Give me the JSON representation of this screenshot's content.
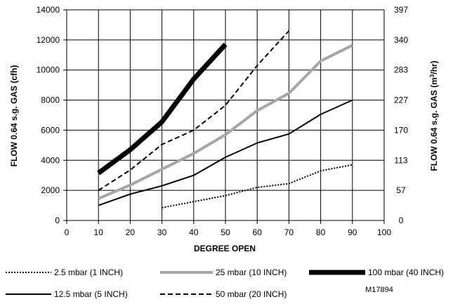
{
  "chart_data": {
    "type": "line",
    "xlabel": "DEGREE OPEN",
    "ylabel": "FLOW 0.64 s.g. GAS (cfh)",
    "y2label_prefix": "FLOW 0.64 s.g. GAS (m",
    "y2label_sup": "3",
    "y2label_suffix": "/hr)",
    "xlim": [
      0,
      100
    ],
    "ylim": [
      0,
      14000
    ],
    "x_ticks": [
      0,
      10,
      20,
      30,
      40,
      50,
      60,
      70,
      80,
      90,
      100
    ],
    "y_ticks": [
      0,
      2000,
      4000,
      6000,
      8000,
      10000,
      12000,
      14000
    ],
    "y2_ticks": [
      0,
      57,
      113,
      170,
      227,
      283,
      340,
      397
    ],
    "grid": true,
    "legend_position": "bottom",
    "figure_id": "M17894",
    "series": [
      {
        "name": "2.5 mbar (1 INCH)",
        "style": "dotted",
        "color": "#000000",
        "points": [
          [
            30,
            850
          ],
          [
            40,
            1250
          ],
          [
            50,
            1650
          ],
          [
            60,
            2200
          ],
          [
            70,
            2450
          ],
          [
            80,
            3300
          ],
          [
            90,
            3700
          ]
        ]
      },
      {
        "name": "25 mbar (10 INCH)",
        "style": "thick-gray",
        "color": "#a6a6a6",
        "points": [
          [
            10,
            1450
          ],
          [
            20,
            2350
          ],
          [
            30,
            3400
          ],
          [
            40,
            4450
          ],
          [
            50,
            5700
          ],
          [
            60,
            7300
          ],
          [
            70,
            8450
          ],
          [
            80,
            10600
          ],
          [
            90,
            11650
          ]
        ]
      },
      {
        "name": "100 mbar (40 INCH)",
        "style": "very-thick",
        "color": "#000000",
        "points": [
          [
            10,
            3150
          ],
          [
            20,
            4700
          ],
          [
            30,
            6550
          ],
          [
            40,
            9400
          ],
          [
            50,
            11700
          ]
        ]
      },
      {
        "name": "12.5 mbar (5 INCH)",
        "style": "solid",
        "color": "#000000",
        "points": [
          [
            10,
            1000
          ],
          [
            20,
            1750
          ],
          [
            30,
            2300
          ],
          [
            40,
            3000
          ],
          [
            50,
            4200
          ],
          [
            60,
            5150
          ],
          [
            70,
            5750
          ],
          [
            80,
            7050
          ],
          [
            90,
            8000
          ]
        ]
      },
      {
        "name": "50 mbar (20 INCH)",
        "style": "dashed",
        "color": "#000000",
        "points": [
          [
            10,
            2000
          ],
          [
            20,
            3350
          ],
          [
            30,
            5050
          ],
          [
            40,
            6000
          ],
          [
            50,
            7650
          ],
          [
            60,
            10300
          ],
          [
            70,
            12600
          ]
        ]
      }
    ]
  }
}
